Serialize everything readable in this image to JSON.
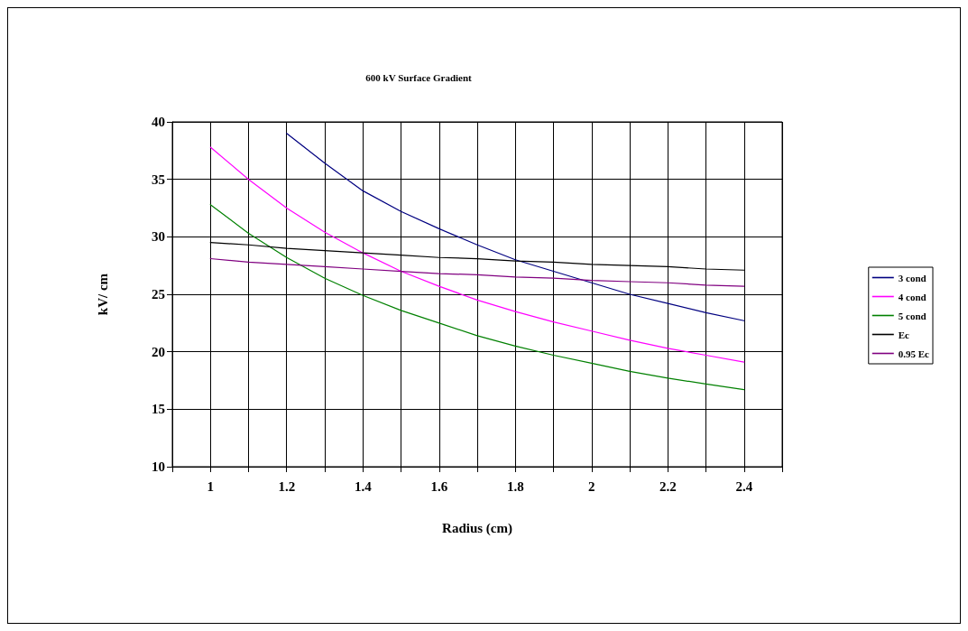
{
  "chart_data": {
    "type": "line",
    "title": "600 kV Surface Gradient",
    "xlabel": "Radius (cm)",
    "ylabel": "kV/ cm",
    "x": [
      1,
      1.1,
      1.2,
      1.3,
      1.4,
      1.5,
      1.6,
      1.7,
      1.8,
      1.9,
      2,
      2.1,
      2.2,
      2.3,
      2.4
    ],
    "series": [
      {
        "name": "3 cond",
        "color": "#000080",
        "values": [
          null,
          null,
          39.0,
          36.4,
          34.0,
          32.2,
          30.7,
          29.3,
          28.0,
          27.0,
          26.0,
          25.0,
          24.2,
          23.4,
          22.7
        ]
      },
      {
        "name": "4 cond",
        "color": "#ff00ff",
        "values": [
          37.8,
          35.0,
          32.5,
          30.4,
          28.6,
          27.0,
          25.7,
          24.5,
          23.5,
          22.6,
          21.8,
          21.0,
          20.3,
          19.7,
          19.1
        ]
      },
      {
        "name": "5 cond",
        "color": "#008000",
        "values": [
          32.8,
          30.3,
          28.2,
          26.4,
          24.9,
          23.6,
          22.5,
          21.4,
          20.5,
          19.7,
          19.0,
          18.3,
          17.7,
          17.2,
          16.7
        ]
      },
      {
        "name": "Ec",
        "color": "#000000",
        "values": [
          29.5,
          29.3,
          29.0,
          28.8,
          28.6,
          28.4,
          28.2,
          28.1,
          27.9,
          27.8,
          27.6,
          27.5,
          27.4,
          27.2,
          27.1
        ]
      },
      {
        "name": "0.95 Ec",
        "color": "#800080",
        "values": [
          28.1,
          27.8,
          27.6,
          27.4,
          27.2,
          27.0,
          26.8,
          26.7,
          26.5,
          26.4,
          26.2,
          26.1,
          26.0,
          25.8,
          25.7
        ]
      }
    ],
    "xlim": [
      0.9,
      2.5
    ],
    "xticks": [
      {
        "value": 0.9,
        "label": null
      },
      1,
      {
        "value": 1.1,
        "label": null
      },
      1.2,
      {
        "value": 1.3,
        "label": null
      },
      1.4,
      {
        "value": 1.5,
        "label": null
      },
      1.6,
      {
        "value": 1.7,
        "label": null
      },
      1.8,
      {
        "value": 1.9,
        "label": null
      },
      2,
      {
        "value": 2.1,
        "label": null
      },
      2.2,
      {
        "value": 2.3,
        "label": null
      },
      2.4,
      {
        "value": 2.5,
        "label": null
      }
    ],
    "ylim": [
      10,
      40
    ],
    "yticks": [
      10,
      15,
      20,
      25,
      30,
      35,
      40
    ],
    "grid": true,
    "legend": "right",
    "marker": "none",
    "line_style": "solid"
  }
}
